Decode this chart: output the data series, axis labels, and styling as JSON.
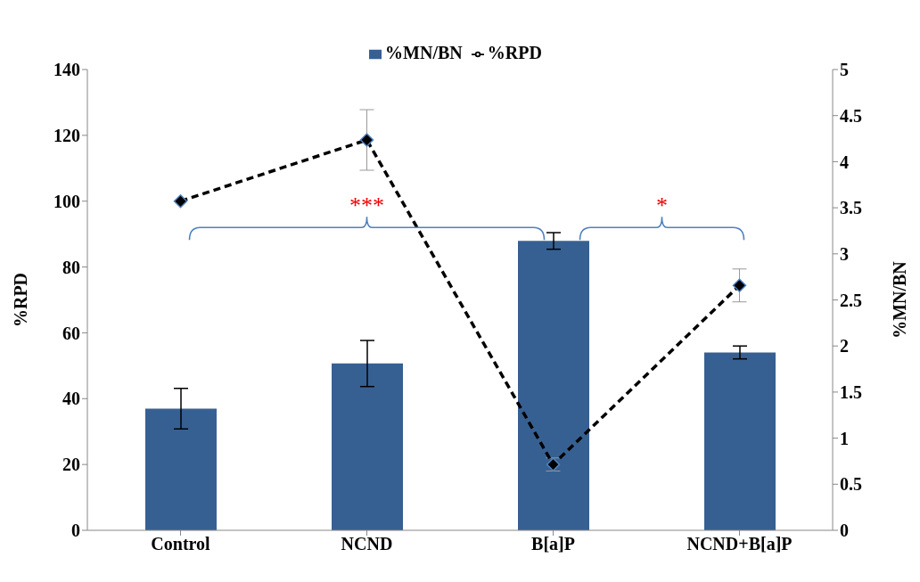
{
  "chart_data": {
    "type": "bar",
    "categories": [
      "Control",
      "NCND",
      "B[a]P",
      "NCND+B[a]P"
    ],
    "ylabel": "%RPD",
    "y2label": "%MN/BN",
    "ylim": [
      0,
      140
    ],
    "yticks": [
      0,
      20,
      40,
      60,
      80,
      100,
      120,
      140
    ],
    "y2lim": [
      0,
      5
    ],
    "y2ticks": [
      0,
      0.5,
      1,
      1.5,
      2,
      2.5,
      3,
      3.5,
      4,
      4.5,
      5
    ],
    "series": [
      {
        "name": "%MN/BN",
        "axis": "y2",
        "color": "#376092",
        "values": [
          1.32,
          1.81,
          3.14,
          1.93
        ],
        "errors": [
          0.22,
          0.25,
          0.09,
          0.07
        ]
      },
      {
        "name": "%RPD",
        "type": "line",
        "color": "#000000",
        "values": [
          100,
          118.6,
          20,
          74.4
        ],
        "errors": [
          null,
          9.2,
          2,
          5
        ]
      }
    ],
    "marker": "diamond",
    "line_style": "dashed",
    "legend": "top",
    "grid": false,
    "annotations": [
      "***",
      "*"
    ]
  }
}
